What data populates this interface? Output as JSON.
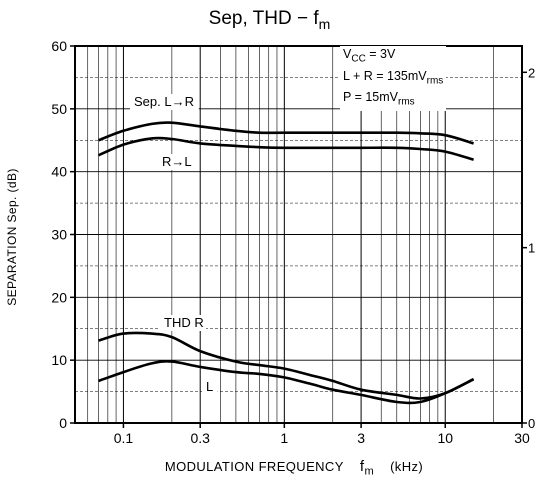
{
  "chart_data": {
    "type": "line",
    "title": "Sep, THD  −  f",
    "title_sub": "m",
    "xlabel": "MODULATION FREQUENCY",
    "xlabel_var": "f",
    "xlabel_var_sub": "m",
    "xlabel_unit": "(kHz)",
    "ylabel": "SEPARATION   Sep.   (dB)",
    "x_scale": "log",
    "xlim": [
      0.05,
      30
    ],
    "ylim": [
      0,
      60
    ],
    "y2lim": [
      0,
      2.15
    ],
    "grid": true,
    "x_ticks": [
      {
        "v": 0.1,
        "label": "0.1"
      },
      {
        "v": 0.3,
        "label": "0.3"
      },
      {
        "v": 1,
        "label": "1"
      },
      {
        "v": 3,
        "label": "3"
      },
      {
        "v": 10,
        "label": "10"
      },
      {
        "v": 30,
        "label": "30"
      }
    ],
    "y_ticks": [
      {
        "v": 0,
        "label": "0"
      },
      {
        "v": 10,
        "label": "10"
      },
      {
        "v": 20,
        "label": "20"
      },
      {
        "v": 30,
        "label": "30"
      },
      {
        "v": 40,
        "label": "40"
      },
      {
        "v": 50,
        "label": "50"
      },
      {
        "v": 60,
        "label": "60"
      }
    ],
    "y2_ticks": [
      {
        "v": 0,
        "label": "0"
      },
      {
        "v": 1,
        "label": "1"
      },
      {
        "v": 2,
        "label": "2"
      }
    ],
    "conditions": [
      {
        "main": "V",
        "sub": "CC",
        "rest": " = 3V"
      },
      {
        "main": "L + R = 135mV",
        "sub": "rms",
        "rest": ""
      },
      {
        "main": "P = 15mV",
        "sub": "rms",
        "rest": ""
      }
    ],
    "series": [
      {
        "name": "Sep. L→R",
        "axis": "left",
        "x": [
          0.07,
          0.1,
          0.15,
          0.2,
          0.3,
          0.5,
          0.7,
          1,
          2,
          3,
          5,
          7,
          10,
          15
        ],
        "y": [
          45,
          46.5,
          47.6,
          47.8,
          47.2,
          46.5,
          46.2,
          46.2,
          46.2,
          46.2,
          46.2,
          46.1,
          45.8,
          44.5
        ]
      },
      {
        "name": "R→L",
        "axis": "left",
        "x": [
          0.07,
          0.1,
          0.15,
          0.2,
          0.3,
          0.5,
          0.7,
          1,
          2,
          3,
          5,
          7,
          10,
          15
        ],
        "y": [
          42.6,
          44.3,
          45.3,
          45.2,
          44.5,
          44.1,
          43.9,
          43.8,
          43.8,
          43.8,
          43.8,
          43.6,
          43.2,
          41.9
        ]
      },
      {
        "name": "THD R",
        "axis": "right",
        "x": [
          0.07,
          0.1,
          0.15,
          0.2,
          0.3,
          0.5,
          0.7,
          1,
          1.5,
          2,
          3,
          5,
          7,
          10,
          15
        ],
        "y": [
          0.47,
          0.51,
          0.51,
          0.49,
          0.41,
          0.35,
          0.33,
          0.31,
          0.27,
          0.24,
          0.19,
          0.16,
          0.14,
          0.17,
          0.25
        ]
      },
      {
        "name": "L",
        "axis": "right",
        "x": [
          0.07,
          0.1,
          0.15,
          0.2,
          0.3,
          0.5,
          0.7,
          1,
          1.5,
          2,
          3,
          5,
          7,
          10,
          15
        ],
        "y": [
          0.24,
          0.29,
          0.34,
          0.35,
          0.32,
          0.29,
          0.28,
          0.26,
          0.22,
          0.19,
          0.16,
          0.12,
          0.12,
          0.17,
          0.25
        ]
      }
    ],
    "labels": [
      {
        "text": "Sep. L→R",
        "series": "Sep. L→R"
      },
      {
        "text": "R→L",
        "series": "R→L"
      },
      {
        "text": "THD R",
        "series": "THD R"
      },
      {
        "text": "L",
        "series": "L"
      }
    ]
  }
}
